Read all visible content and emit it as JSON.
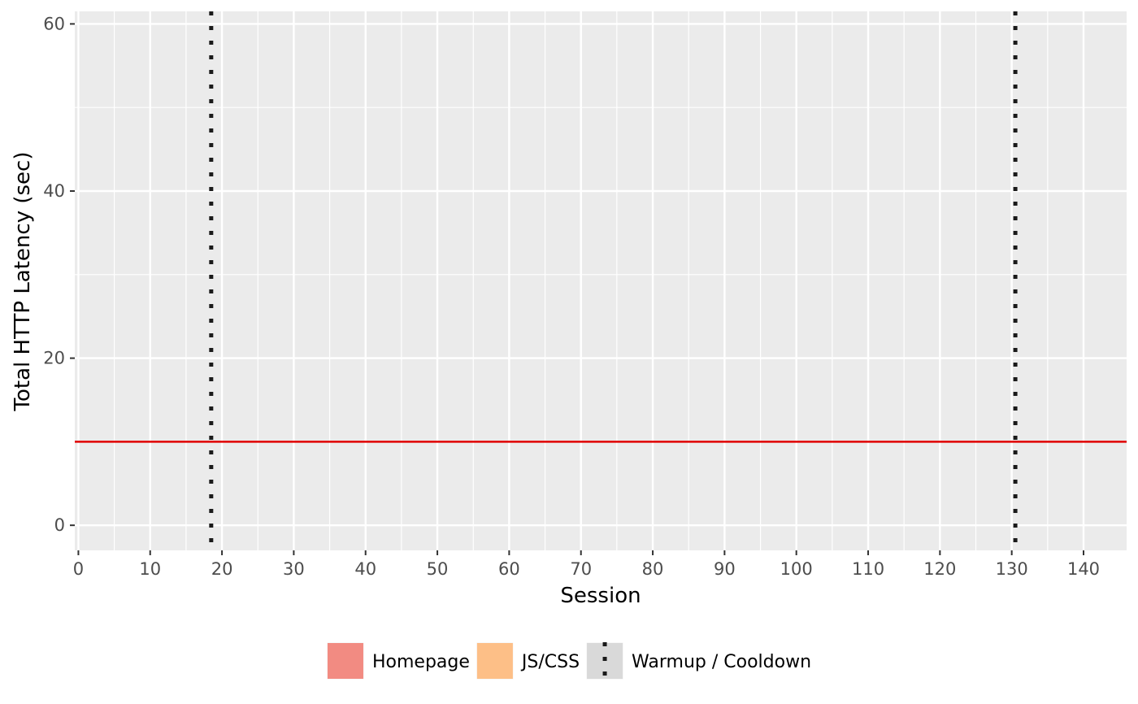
{
  "chart_data": {
    "type": "line",
    "title": "",
    "xlabel": "Session",
    "ylabel": "Total HTTP Latency (sec)",
    "xlim": [
      -0.5,
      146
    ],
    "ylim": [
      -3,
      61.5
    ],
    "x_ticks": [
      0,
      10,
      20,
      30,
      40,
      50,
      60,
      70,
      80,
      90,
      100,
      110,
      120,
      130,
      140
    ],
    "x_tick_labels": [
      "0",
      "10",
      "20",
      "30",
      "40",
      "50",
      "60",
      "70",
      "80",
      "90",
      "100",
      "110",
      "120",
      "130",
      "140"
    ],
    "y_ticks": [
      0,
      20,
      40,
      60
    ],
    "y_tick_labels": [
      "0",
      "20",
      "40",
      "60"
    ],
    "grid": true,
    "background": "#ebebeb",
    "series": [
      {
        "name": "Homepage",
        "color": "#f28b82",
        "values": []
      },
      {
        "name": "JS/CSS",
        "color": "#fdbf87",
        "values": []
      }
    ],
    "reference_lines": [
      {
        "orientation": "horizontal",
        "value": 10,
        "color": "#e00000",
        "style": "solid"
      },
      {
        "orientation": "vertical",
        "value": 18.5,
        "color": "#1a1a1a",
        "style": "dotted",
        "name": "Warmup / Cooldown"
      },
      {
        "orientation": "vertical",
        "value": 130.5,
        "color": "#1a1a1a",
        "style": "dotted",
        "name": "Warmup / Cooldown"
      }
    ],
    "legend": {
      "position": "bottom",
      "entries": [
        {
          "label": "Homepage",
          "kind": "fill",
          "color": "#f28b82"
        },
        {
          "label": "JS/CSS",
          "kind": "fill",
          "color": "#fdbf87"
        },
        {
          "label": "Warmup / Cooldown",
          "kind": "dotted-line",
          "color": "#1a1a1a"
        }
      ]
    }
  }
}
